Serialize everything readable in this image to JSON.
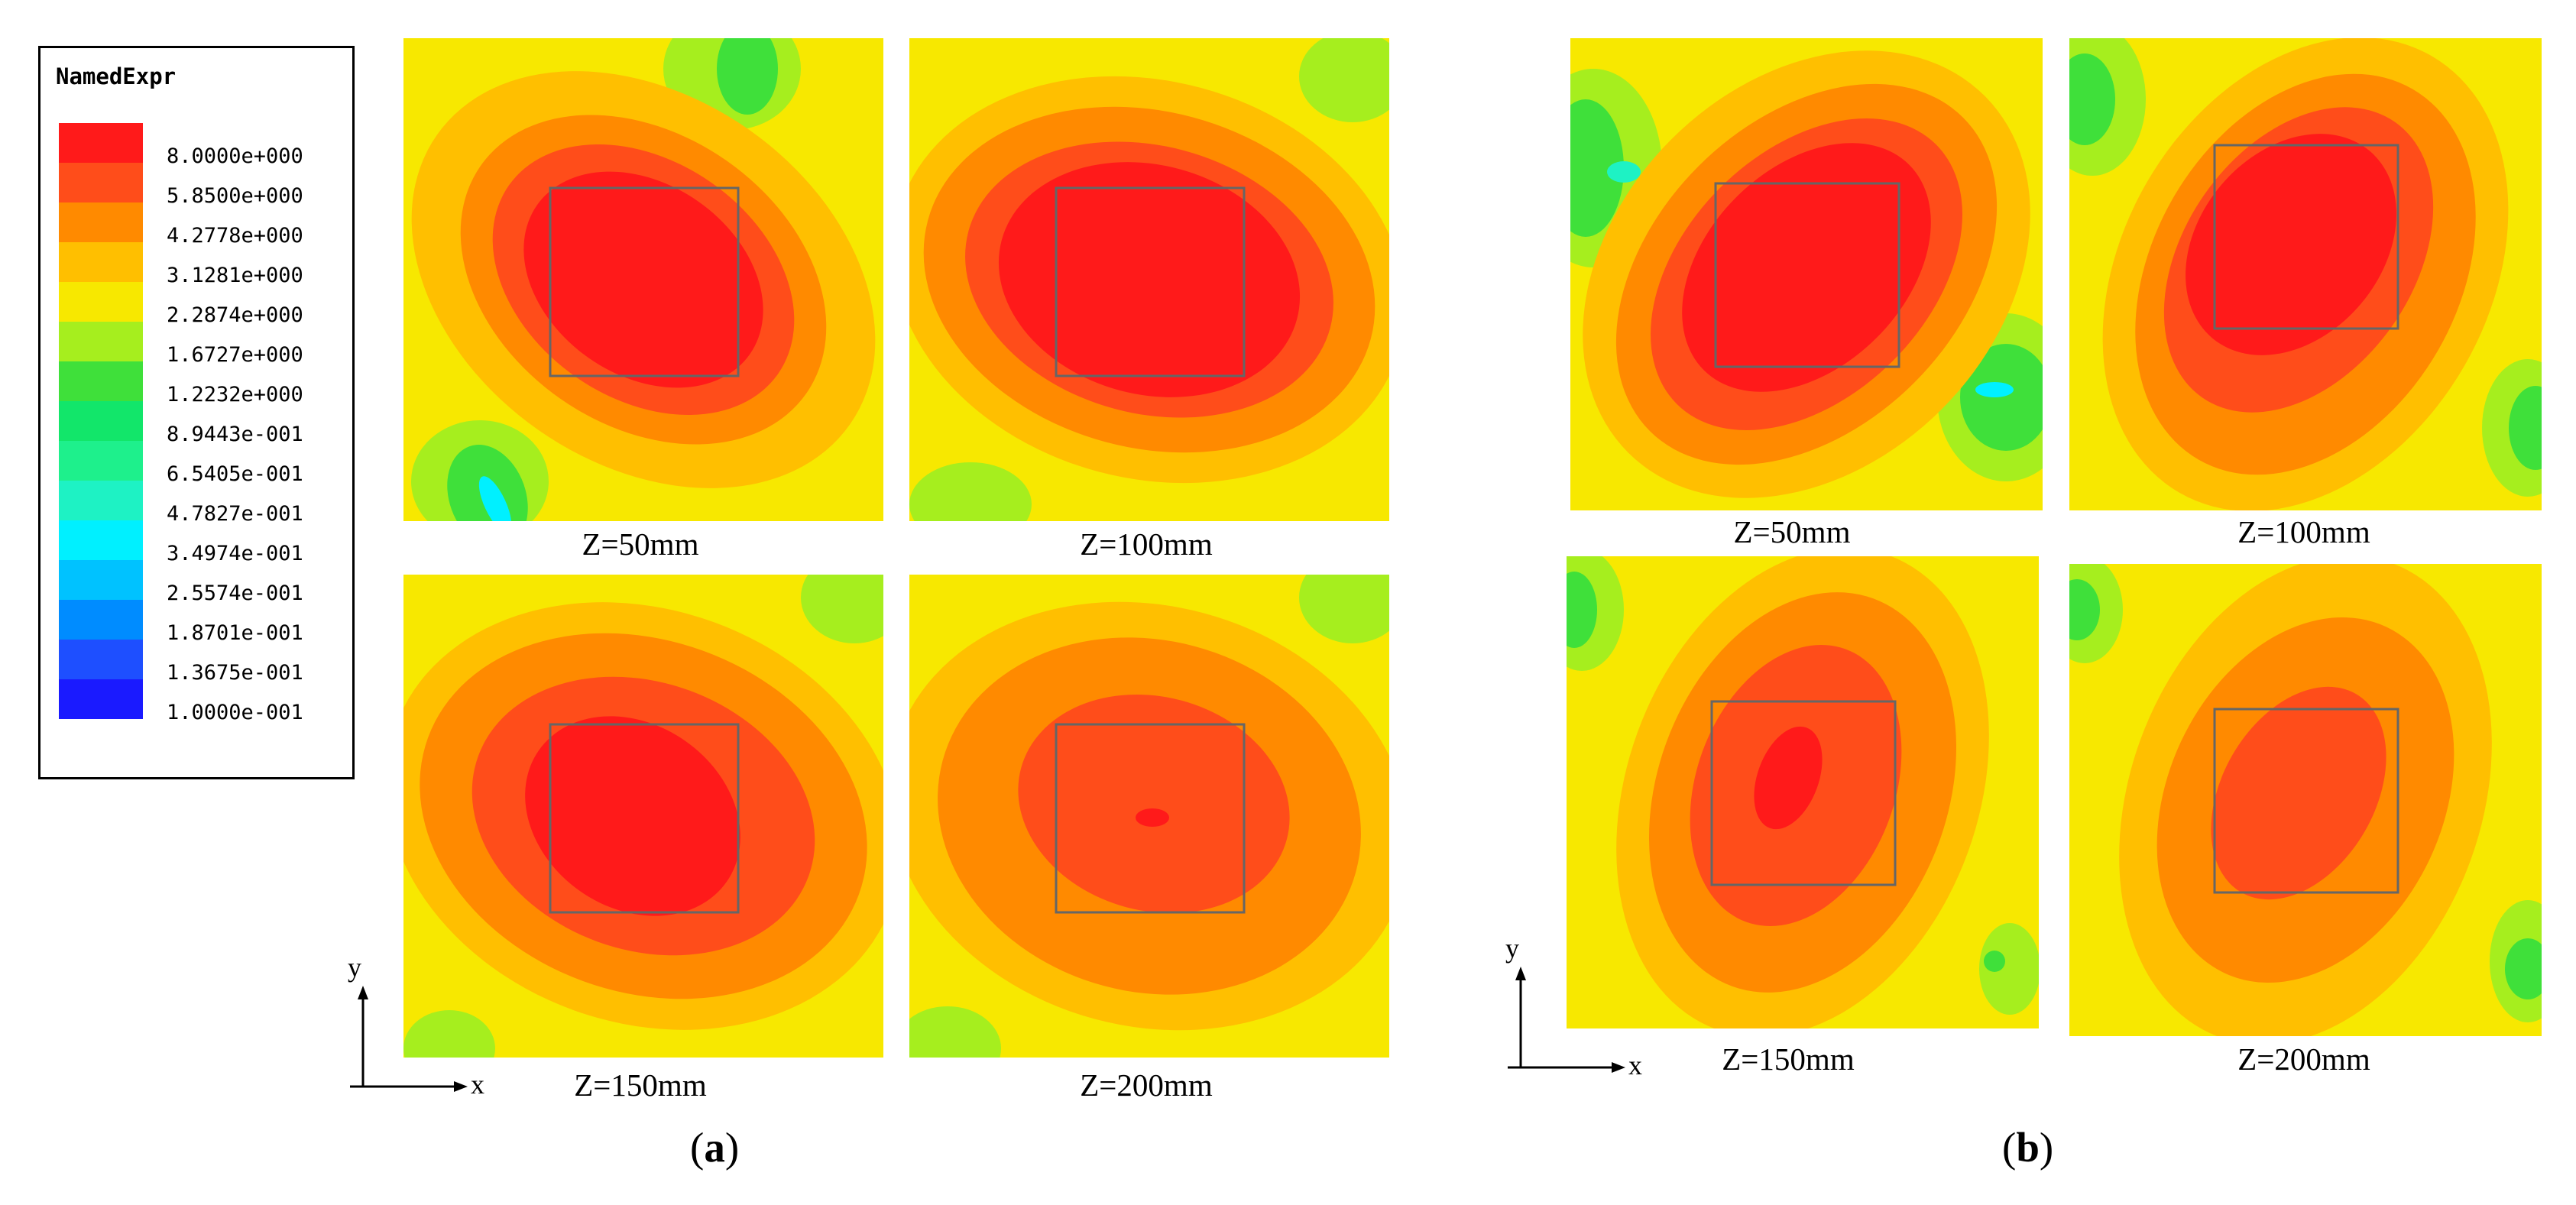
{
  "chart_data": {
    "type": "heatmap",
    "title": "",
    "colorbar": {
      "title": "NamedExpr",
      "levels": [
        "8.0000e+000",
        "5.8500e+000",
        "4.2778e+000",
        "3.1281e+000",
        "2.2874e+000",
        "1.6727e+000",
        "1.2232e+000",
        "8.9443e-001",
        "6.5405e-001",
        "4.7827e-001",
        "3.4974e-001",
        "2.5574e-001",
        "1.8701e-001",
        "1.3675e-001",
        "1.0000e-001"
      ],
      "colors": [
        "#ff1a1a",
        "#ff4d1a",
        "#ff8a00",
        "#ffbf00",
        "#f7e800",
        "#a6ee1e",
        "#3fe03a",
        "#12e66a",
        "#1ef08c",
        "#1ef2c4",
        "#00f0ff",
        "#00c2ff",
        "#008cff",
        "#1e4fff",
        "#1a1aff"
      ]
    },
    "axes": {
      "x": "x",
      "y": "y"
    },
    "groups": [
      {
        "label": "a",
        "panels": [
          {
            "caption": "Z=50mm",
            "peak": 8.0
          },
          {
            "caption": "Z=100mm",
            "peak": 8.0
          },
          {
            "caption": "Z=150mm",
            "peak": 8.0
          },
          {
            "caption": "Z=200mm",
            "peak": 5.85
          }
        ]
      },
      {
        "label": "b",
        "panels": [
          {
            "caption": "Z=50mm",
            "peak": 8.0
          },
          {
            "caption": "Z=100mm",
            "peak": 8.0
          },
          {
            "caption": "Z=150mm",
            "peak": 8.0
          },
          {
            "caption": "Z=200mm",
            "peak": 5.85
          }
        ]
      }
    ]
  },
  "labels": {
    "a_open": "(",
    "a_letter": "a",
    "a_close": ")",
    "b_open": "(",
    "b_letter": "b",
    "b_close": ")"
  }
}
